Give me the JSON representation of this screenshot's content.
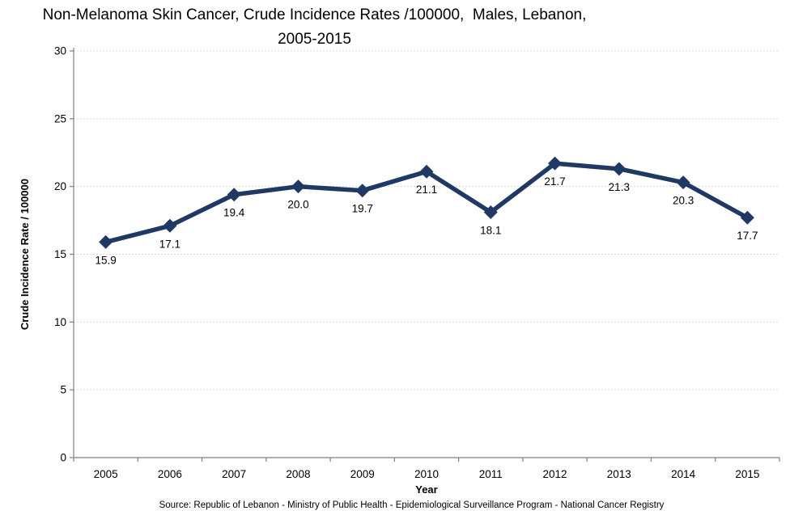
{
  "chart_data": {
    "type": "line",
    "title": "Non-Melanoma Skin Cancer, Crude Incidence Rates /100000,  Males, Lebanon, 2005-2015",
    "title_lines": [
      "Non-Melanoma Skin Cancer, Crude Incidence Rates /100000,  Males, Lebanon,",
      "2005-2015"
    ],
    "xlabel": "Year",
    "ylabel": "Crude Incidence Rate / 100000",
    "categories": [
      "2005",
      "2006",
      "2007",
      "2008",
      "2009",
      "2010",
      "2011",
      "2012",
      "2013",
      "2014",
      "2015"
    ],
    "values": [
      15.9,
      17.1,
      19.4,
      20.0,
      19.7,
      21.1,
      18.1,
      21.7,
      21.3,
      20.3,
      17.7
    ],
    "point_labels": [
      "15.9",
      "17.1",
      "19.4",
      "20.0",
      "19.7",
      "21.1",
      "18.1",
      "21.7",
      "21.3",
      "20.3",
      "17.7"
    ],
    "ylim": [
      0,
      30
    ],
    "ytick_step": 5,
    "yticks": [
      0,
      5,
      10,
      15,
      20,
      25,
      30
    ],
    "grid": "horizontal dotted",
    "legend_position": "none",
    "marker": "diamond",
    "source": "Source: Republic of Lebanon - Ministry of Public Health - Epidemiological Surveillance Program - National Cancer Registry",
    "colors": {
      "line": "#1F3864",
      "axis": "#7F7F7F",
      "gridline": "#D9D9D9",
      "text": "#000000",
      "background": "#FFFFFF"
    }
  }
}
